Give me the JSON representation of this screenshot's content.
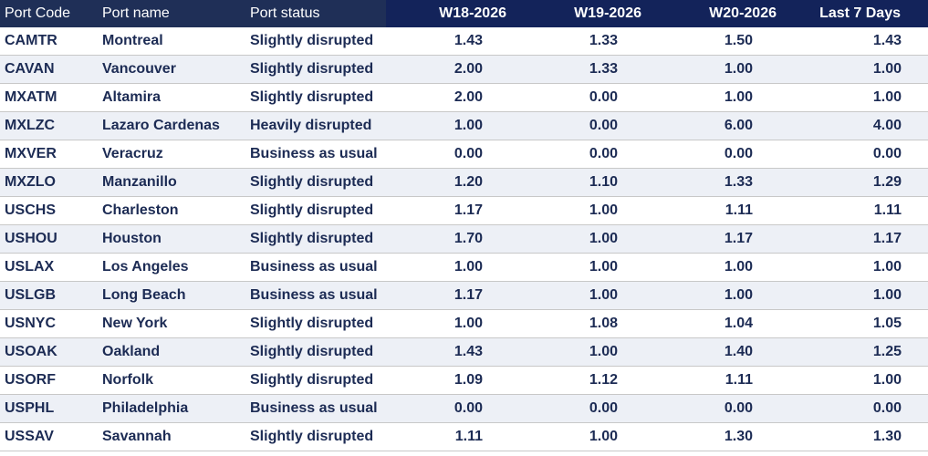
{
  "table": {
    "headers": {
      "code": "Port Code",
      "name": "Port name",
      "status": "Port status",
      "w18": "W18-2026",
      "w19": "W19-2026",
      "w20": "W20-2026",
      "last7": "Last 7 Days"
    },
    "rows": [
      {
        "code": "CAMTR",
        "name": "Montreal",
        "status": "Slightly disrupted",
        "w18": "1.43",
        "w19": "1.33",
        "w20": "1.50",
        "last7": "1.43"
      },
      {
        "code": "CAVAN",
        "name": "Vancouver",
        "status": "Slightly disrupted",
        "w18": "2.00",
        "w19": "1.33",
        "w20": "1.00",
        "last7": "1.00"
      },
      {
        "code": "MXATM",
        "name": "Altamira",
        "status": "Slightly disrupted",
        "w18": "2.00",
        "w19": "0.00",
        "w20": "1.00",
        "last7": "1.00"
      },
      {
        "code": "MXLZC",
        "name": "Lazaro Cardenas",
        "status": "Heavily disrupted",
        "w18": "1.00",
        "w19": "0.00",
        "w20": "6.00",
        "last7": "4.00"
      },
      {
        "code": "MXVER",
        "name": "Veracruz",
        "status": "Business as usual",
        "w18": "0.00",
        "w19": "0.00",
        "w20": "0.00",
        "last7": "0.00"
      },
      {
        "code": "MXZLO",
        "name": "Manzanillo",
        "status": "Slightly disrupted",
        "w18": "1.20",
        "w19": "1.10",
        "w20": "1.33",
        "last7": "1.29"
      },
      {
        "code": "USCHS",
        "name": "Charleston",
        "status": "Slightly disrupted",
        "w18": "1.17",
        "w19": "1.00",
        "w20": "1.11",
        "last7": "1.11"
      },
      {
        "code": "USHOU",
        "name": "Houston",
        "status": "Slightly disrupted",
        "w18": "1.70",
        "w19": "1.00",
        "w20": "1.17",
        "last7": "1.17"
      },
      {
        "code": "USLAX",
        "name": "Los Angeles",
        "status": "Business as usual",
        "w18": "1.00",
        "w19": "1.00",
        "w20": "1.00",
        "last7": "1.00"
      },
      {
        "code": "USLGB",
        "name": "Long Beach",
        "status": "Business as usual",
        "w18": "1.17",
        "w19": "1.00",
        "w20": "1.00",
        "last7": "1.00"
      },
      {
        "code": "USNYC",
        "name": "New York",
        "status": "Slightly disrupted",
        "w18": "1.00",
        "w19": "1.08",
        "w20": "1.04",
        "last7": "1.05"
      },
      {
        "code": "USOAK",
        "name": "Oakland",
        "status": "Slightly disrupted",
        "w18": "1.43",
        "w19": "1.00",
        "w20": "1.40",
        "last7": "1.25"
      },
      {
        "code": "USORF",
        "name": "Norfolk",
        "status": "Slightly disrupted",
        "w18": "1.09",
        "w19": "1.12",
        "w20": "1.11",
        "last7": "1.00"
      },
      {
        "code": "USPHL",
        "name": "Philadelphia",
        "status": "Business as usual",
        "w18": "0.00",
        "w19": "0.00",
        "w20": "0.00",
        "last7": "0.00"
      },
      {
        "code": "USSAV",
        "name": "Savannah",
        "status": "Slightly disrupted",
        "w18": "1.11",
        "w19": "1.00",
        "w20": "1.30",
        "last7": "1.30"
      }
    ]
  }
}
